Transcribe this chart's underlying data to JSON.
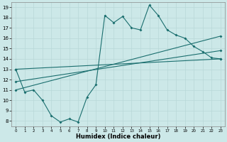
{
  "xlabel": "Humidex (Indice chaleur)",
  "xlim": [
    -0.5,
    23.5
  ],
  "ylim": [
    7.5,
    19.5
  ],
  "yticks": [
    8,
    9,
    10,
    11,
    12,
    13,
    14,
    15,
    16,
    17,
    18,
    19
  ],
  "xticks": [
    0,
    1,
    2,
    3,
    4,
    5,
    6,
    7,
    8,
    9,
    10,
    11,
    12,
    13,
    14,
    15,
    16,
    17,
    18,
    19,
    20,
    21,
    22,
    23
  ],
  "background_color": "#cce8e8",
  "line_color": "#1a6e6e",
  "line1_x": [
    0,
    1,
    2,
    3,
    4,
    5,
    6,
    7,
    8,
    9,
    10,
    11,
    12,
    13,
    14,
    15,
    16,
    17,
    18,
    19,
    20,
    21,
    22,
    23
  ],
  "line1_y": [
    13.0,
    10.8,
    11.0,
    10.0,
    8.5,
    7.9,
    8.2,
    7.9,
    10.3,
    11.5,
    18.2,
    17.5,
    18.1,
    17.0,
    16.8,
    19.2,
    18.2,
    16.8,
    16.3,
    16.0,
    15.2,
    14.7,
    14.1,
    14.0
  ],
  "line2_x": [
    0,
    23
  ],
  "line2_y": [
    11.0,
    16.2
  ],
  "line3_x": [
    0,
    23
  ],
  "line3_y": [
    11.8,
    14.8
  ],
  "line4_x": [
    0,
    23
  ],
  "line4_y": [
    13.0,
    14.0
  ],
  "grid_color": "#b8d8d8"
}
